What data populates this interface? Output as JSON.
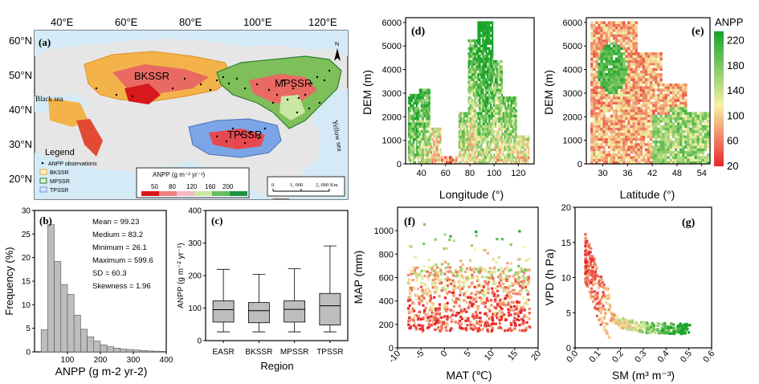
{
  "chart_data": [
    {
      "panel": "a",
      "type": "map",
      "panel_label": "(a)",
      "lon_ticks": [
        "40°E",
        "60°E",
        "80°E",
        "100°E",
        "120°E"
      ],
      "lat_ticks": [
        "60°N",
        "50°N",
        "40°N",
        "30°N",
        "20°N"
      ],
      "regions": [
        "BKSSR",
        "MPSSR",
        "TPSSR"
      ],
      "water_labels": [
        "Black sea",
        "Yellow sea"
      ],
      "north_arrow": "N",
      "legend": {
        "title": "Legend",
        "items": [
          "ANPP observations",
          "BKSSR",
          "MPSSR",
          "TPSSR"
        ],
        "colors": [
          "#000000",
          "#f5a623",
          "#2e7d32",
          "#6a8fd8"
        ]
      },
      "anpp_scale": {
        "title": "ANPP (g m⁻² yr⁻¹)",
        "ticks": [
          "50",
          "80",
          "120",
          "160",
          "200"
        ],
        "colors": [
          "#d7191c",
          "#f08080",
          "#f6b8c4",
          "#cce8a8",
          "#66bd63",
          "#1a9641"
        ]
      },
      "scale_bar": [
        "0",
        "1, 000",
        "2, 000 Km"
      ]
    },
    {
      "panel": "b",
      "type": "bar",
      "panel_label": "(b)",
      "xlabel": "ANPP (g m-2 yr-2)",
      "ylabel": "Frequency (%)",
      "xlim": [
        0,
        400
      ],
      "ylim": [
        0,
        30
      ],
      "xticks": [
        "100",
        "200",
        "300",
        "400"
      ],
      "yticks": [
        "0",
        "5",
        "10",
        "15",
        "20",
        "25",
        "30"
      ],
      "bin_edges": [
        20,
        40,
        60,
        80,
        100,
        120,
        140,
        160,
        180,
        200,
        220,
        240,
        260,
        280,
        300,
        320,
        340,
        360,
        380,
        400,
        420
      ],
      "values": [
        4.7,
        27.0,
        19.2,
        14.3,
        12.2,
        7.8,
        4.8,
        3.2,
        2.3,
        1.5,
        1.1,
        0.8,
        0.6,
        0.5,
        0.4,
        0.3,
        0.2,
        0.15,
        0.1,
        0.1
      ],
      "stats": [
        "Mean = 99.23",
        "Medium = 83.2",
        "Minimum = 26.1",
        "Maximum = 599.6",
        "SD = 60.3",
        "Skewness = 1.96"
      ]
    },
    {
      "panel": "c",
      "type": "box",
      "panel_label": "(c)",
      "xlabel": "Region",
      "ylabel": "ANPP (g m⁻² yr⁻¹)",
      "ylim": [
        0,
        400
      ],
      "yticks": [
        "0",
        "100",
        "200",
        "300",
        "400"
      ],
      "categories": [
        "EASR",
        "BKSSR",
        "MPSSR",
        "TPSSR"
      ],
      "boxes": [
        {
          "min": 27,
          "q1": 57,
          "median": 95,
          "q3": 122,
          "max": 219
        },
        {
          "min": 27,
          "q1": 55,
          "median": 92,
          "q3": 117,
          "max": 204
        },
        {
          "min": 27,
          "q1": 57,
          "median": 96,
          "q3": 122,
          "max": 221
        },
        {
          "min": 27,
          "q1": 48,
          "median": 107,
          "q3": 145,
          "max": 291
        }
      ]
    },
    {
      "panel": "d",
      "type": "heatmap",
      "panel_label": "(d)",
      "xlabel": "Longitude (°)",
      "ylabel": "DEM (m)",
      "xlim": [
        27,
        133
      ],
      "ylim": [
        0,
        6200
      ],
      "xticks": [
        "40",
        "60",
        "80",
        "100",
        "120"
      ],
      "yticks": [
        "0",
        "1000",
        "2000",
        "3000",
        "4000",
        "5000",
        "6000"
      ]
    },
    {
      "panel": "e",
      "type": "heatmap",
      "panel_label": "(e)",
      "xlabel": "Latitude (°)",
      "ylabel": "DEM (m)",
      "xlim": [
        26,
        56
      ],
      "ylim": [
        0,
        6200
      ],
      "xticks": [
        "30",
        "36",
        "42",
        "48",
        "54"
      ],
      "yticks": [
        "0",
        "1000",
        "2000",
        "3000",
        "4000",
        "5000",
        "6000"
      ],
      "colorbar": {
        "title": "ANPP",
        "ticks": [
          "220",
          "180",
          "140",
          "100",
          "60",
          "20"
        ],
        "range": [
          20,
          235
        ]
      }
    },
    {
      "panel": "f",
      "type": "scatter",
      "panel_label": "(f)",
      "xlabel": "MAT (℃)",
      "ylabel": "MAP (mm)",
      "xlim": [
        -10,
        20
      ],
      "ylim": [
        0,
        1200
      ],
      "xticks": [
        "-10",
        "-5",
        "0",
        "5",
        "10",
        "15",
        "20"
      ],
      "yticks": [
        "0",
        "200",
        "400",
        "600",
        "800",
        "1000"
      ]
    },
    {
      "panel": "g",
      "type": "scatter",
      "panel_label": "(g)",
      "xlabel": "SM (m³ m⁻³)",
      "ylabel": "VPD (h Pa)",
      "xlim": [
        0,
        0.6
      ],
      "ylim": [
        0,
        20
      ],
      "xticks": [
        "0.0",
        "0.1",
        "0.2",
        "0.3",
        "0.4",
        "0.5",
        "0.6"
      ],
      "yticks": [
        "0",
        "5",
        "10",
        "15",
        "20"
      ]
    }
  ],
  "colors": {
    "low": "#e8252b",
    "mid": "#f7f1a6",
    "high": "#17a32a",
    "water": "#cfe8f5",
    "land": "#e5e5e5",
    "bar": "#bdbdbd"
  }
}
